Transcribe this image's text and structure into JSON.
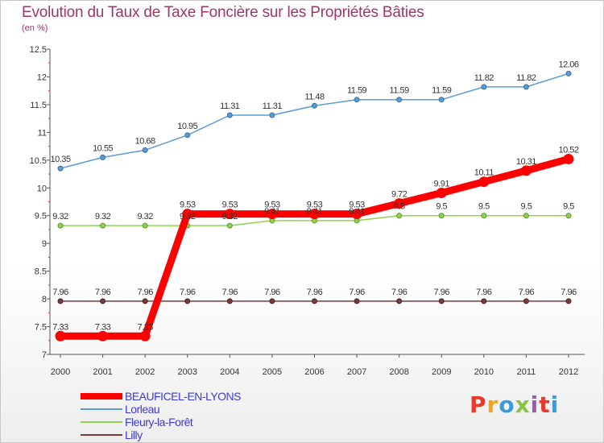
{
  "title": "Evolution du Taux de Taxe Foncière sur les Propriétés Bâties",
  "subtitle": "(en %)",
  "logo": {
    "text": "Proxiti",
    "colors": [
      "#e8392b",
      "#f7a21b",
      "#3c9ad6",
      "#8bc53f",
      "#9b59b6",
      "#e8392b",
      "#3c9ad6"
    ]
  },
  "chart_data": {
    "type": "line",
    "title": "Evolution du Taux de Taxe Foncière sur les Propriétés Bâties",
    "ylabel": "(en %)",
    "xlabel": "",
    "ylim": [
      7,
      12.5
    ],
    "yticks": [
      "7",
      "7.5",
      "8",
      "8.5",
      "9",
      "9.5",
      "10",
      "10.5",
      "11",
      "11.5",
      "12",
      "12.5"
    ],
    "x": [
      "2000",
      "2001",
      "2002",
      "2003",
      "2004",
      "2005",
      "2006",
      "2007",
      "2008",
      "2009",
      "2010",
      "2011",
      "2012"
    ],
    "grid": false,
    "legend": "bottom-left",
    "series": [
      {
        "name": "BEAUFICEL-EN-LYONS",
        "color": "#ff0000",
        "labels": [
          "7.33",
          "7.33",
          "7.33",
          "9.53",
          "9.53",
          "9.53",
          "9.53",
          "9.53",
          "9.72",
          "9.91",
          "10.11",
          "10.31",
          "10.52"
        ],
        "values": [
          7.33,
          7.33,
          7.33,
          9.53,
          9.53,
          9.53,
          9.53,
          9.53,
          9.72,
          9.91,
          10.11,
          10.31,
          10.52
        ]
      },
      {
        "name": "Lorleau",
        "color": "#5b9bd5",
        "labels": [
          "10.35",
          "10.55",
          "10.68",
          "10.95",
          "11.31",
          "11.31",
          "11.48",
          "11.59",
          "11.59",
          "11.59",
          "11.82",
          "11.82",
          "12.06"
        ],
        "values": [
          10.35,
          10.55,
          10.68,
          10.95,
          11.31,
          11.31,
          11.48,
          11.59,
          11.59,
          11.59,
          11.82,
          11.82,
          12.06
        ]
      },
      {
        "name": "Fleury-la-Forêt",
        "color": "#92d050",
        "labels": [
          "9.32",
          "9.32",
          "9.32",
          "9.32",
          "9.32",
          "9.41",
          "9.41",
          "9.41",
          "9.5",
          "9.5",
          "9.5",
          "9.5",
          "9.5"
        ],
        "values": [
          9.32,
          9.32,
          9.32,
          9.32,
          9.32,
          9.41,
          9.41,
          9.41,
          9.5,
          9.5,
          9.5,
          9.5,
          9.5
        ]
      },
      {
        "name": "Lilly",
        "color": "#7b3b3b",
        "labels": [
          "7.96",
          "7.96",
          "7.96",
          "7.96",
          "7.96",
          "7.96",
          "7.96",
          "7.96",
          "7.96",
          "7.96",
          "7.96",
          "7.96",
          "7.96"
        ],
        "values": [
          7.96,
          7.96,
          7.96,
          7.96,
          7.96,
          7.96,
          7.96,
          7.96,
          7.96,
          7.96,
          7.96,
          7.96,
          7.96
        ]
      }
    ]
  }
}
